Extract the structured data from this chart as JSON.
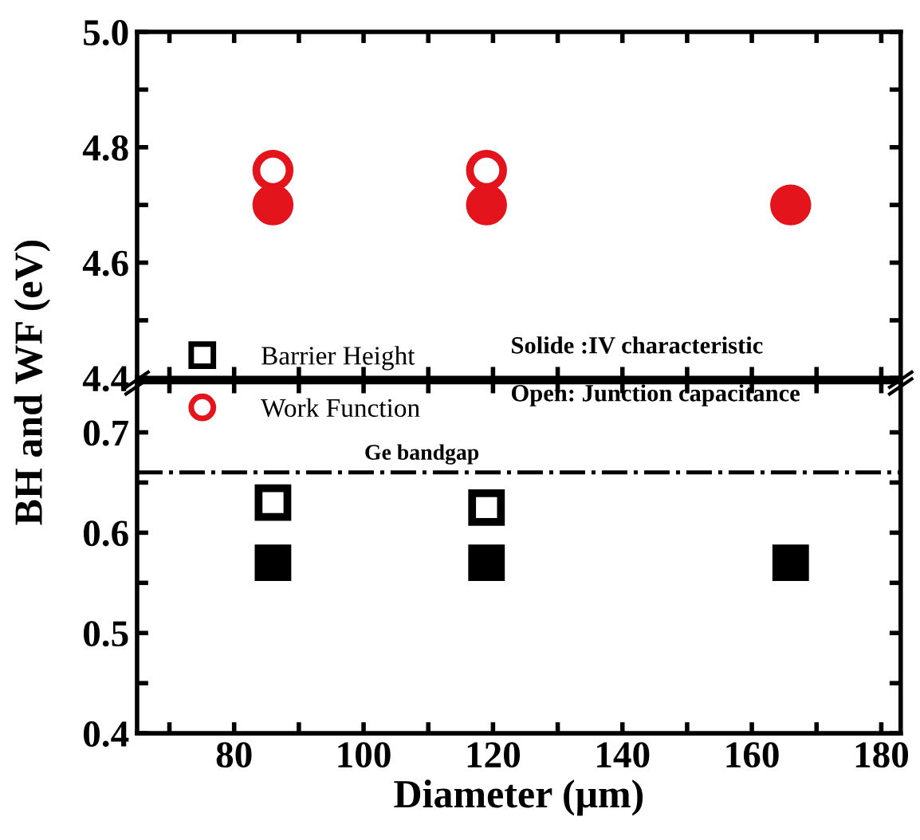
{
  "chart_data": [
    {
      "type": "scatter",
      "ylabel": "BH and WF (eV)",
      "xlim": [
        65,
        183
      ],
      "ylim": [
        4.4,
        5.0
      ],
      "xticks": [
        {
          "value": 70,
          "label": null
        },
        {
          "value": 80,
          "label": null
        },
        {
          "value": 90,
          "label": null
        },
        {
          "value": 100,
          "label": null
        },
        {
          "value": 110,
          "label": null
        },
        {
          "value": 120,
          "label": null
        },
        {
          "value": 130,
          "label": null
        },
        {
          "value": 140,
          "label": null
        },
        {
          "value": 150,
          "label": null
        },
        {
          "value": 160,
          "label": null
        },
        {
          "value": 170,
          "label": null
        },
        {
          "value": 180,
          "label": null
        }
      ],
      "yticks": [
        4.4,
        {
          "value": 4.5,
          "label": null
        },
        4.6,
        {
          "value": 4.7,
          "label": null
        },
        4.8,
        {
          "value": 4.9,
          "label": null
        },
        {
          "value": 5.0,
          "label": "5.0"
        }
      ],
      "tick_labels": "y",
      "grid": false,
      "legend": "bottom left",
      "annotations": [
        "Solide :IV characteristic",
        "Open: Junction capacitance"
      ],
      "series": [
        {
          "name": "Work Function",
          "color": "#e3141b",
          "marker": "circle",
          "x": [
            86,
            119
          ],
          "values": [
            4.76,
            4.76
          ]
        },
        {
          "color": "#e3141b",
          "marker": "circle",
          "x": [
            86,
            119,
            166
          ],
          "values": [
            4.7,
            4.7,
            4.7
          ]
        }
      ]
    },
    {
      "type": "scatter",
      "xlabel": "Diameter (μm)",
      "xlim": [
        65,
        183
      ],
      "ylim": [
        0.4,
        0.75
      ],
      "xticks": [
        {
          "value": 70,
          "label": null
        },
        80,
        {
          "value": 90,
          "label": null
        },
        100,
        {
          "value": 110,
          "label": null
        },
        120,
        {
          "value": 130,
          "label": null
        },
        140,
        {
          "value": 150,
          "label": null
        },
        160,
        {
          "value": 170,
          "label": null
        },
        180
      ],
      "yticks": [
        0.4,
        {
          "value": 0.45,
          "label": null
        },
        0.5,
        {
          "value": 0.55,
          "label": null
        },
        0.6,
        {
          "value": 0.65,
          "label": null
        },
        0.7
      ],
      "grid": false,
      "ref_lines": [
        {
          "axis": "y",
          "value": 0.66,
          "label": "Ge bandgap",
          "color": "#000000",
          "line_style": "dashdot"
        }
      ],
      "series": [
        {
          "name": "Barrier Height",
          "color": "#000000",
          "marker": "square",
          "x": [
            86,
            119
          ],
          "values": [
            0.63,
            0.625
          ]
        },
        {
          "color": "#000000",
          "marker": "square",
          "x": [
            86,
            119,
            166
          ],
          "values": [
            0.57,
            0.57,
            0.57
          ]
        }
      ]
    }
  ]
}
